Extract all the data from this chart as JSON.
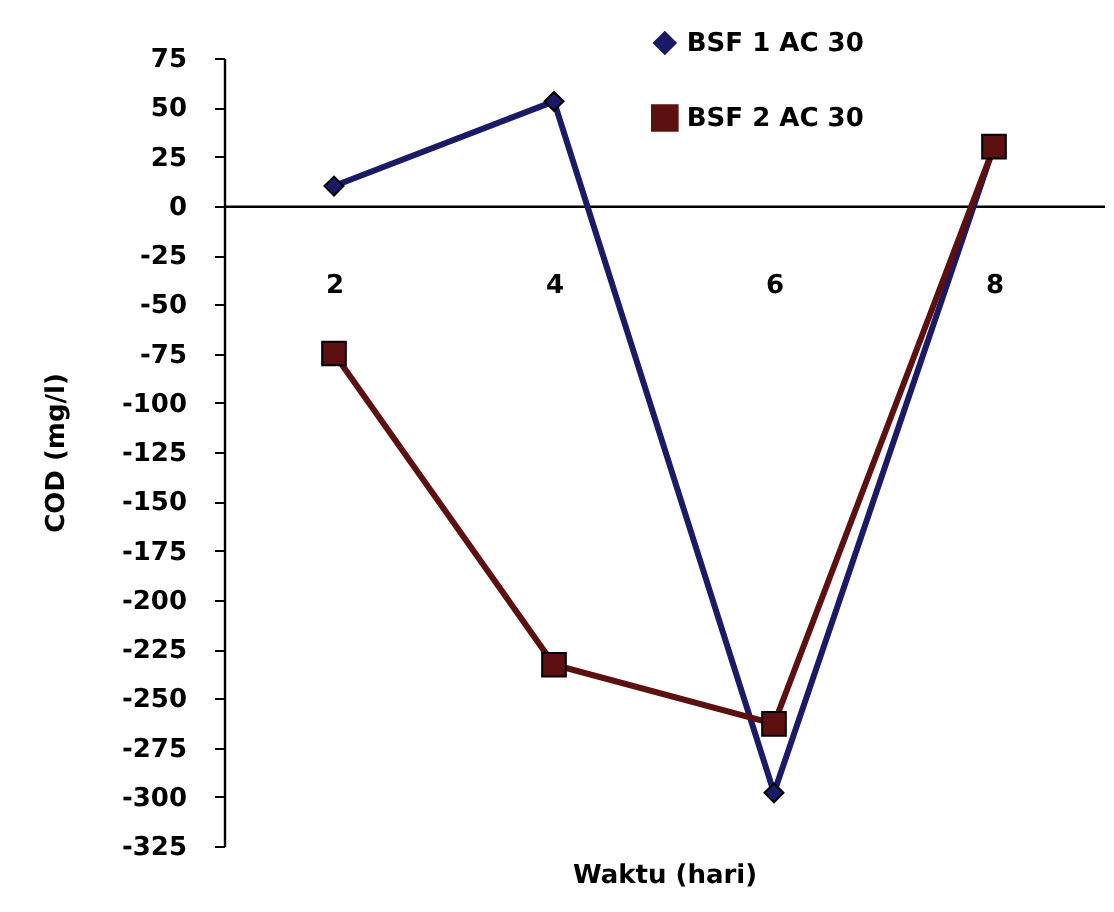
{
  "chart_data": {
    "type": "line",
    "xlabel": "Waktu (hari)",
    "ylabel": "COD (mg/l)",
    "categories": [
      "2",
      "4",
      "6",
      "8"
    ],
    "series": [
      {
        "name": "BSF 1 AC 30",
        "color": "#1a1a66",
        "marker": "diamond",
        "values": [
          10,
          53,
          -298,
          30
        ]
      },
      {
        "name": "BSF 2 AC 30",
        "color": "#5c1010",
        "marker": "square",
        "values": [
          -75,
          -233,
          -263,
          30
        ]
      }
    ],
    "ylim": [
      -325,
      75
    ],
    "yticks": [
      75,
      50,
      25,
      0,
      -25,
      -50,
      -75,
      -100,
      -125,
      -150,
      -175,
      -200,
      -225,
      -250,
      -275,
      -300,
      -325
    ],
    "grid": false,
    "legend": "top right",
    "line_style": "solid"
  }
}
